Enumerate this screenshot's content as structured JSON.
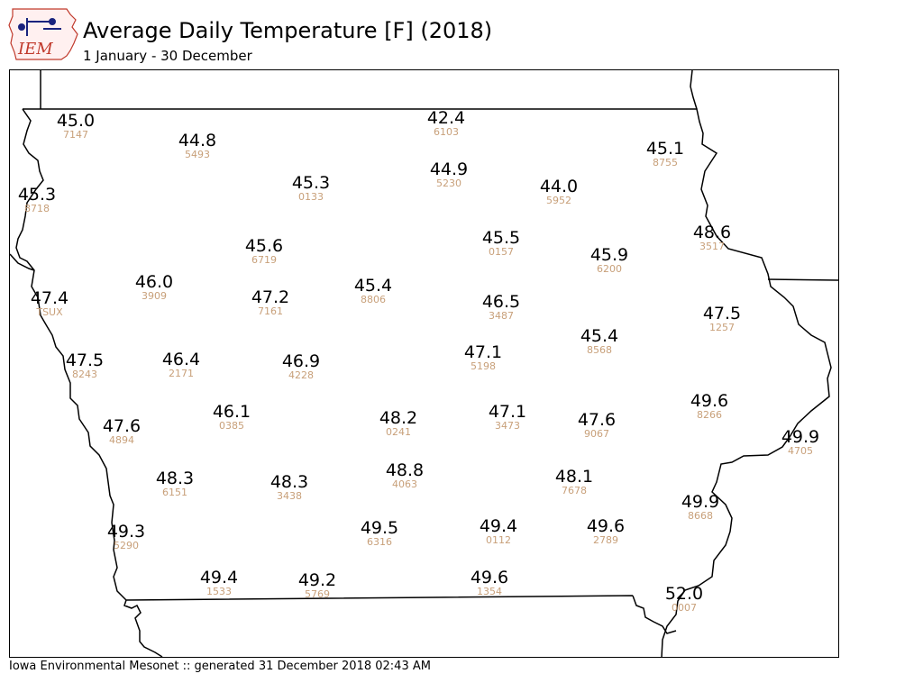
{
  "header": {
    "logo_text": "IEM",
    "title": "Average Daily Temperature [F] (2018)",
    "subtitle": "1 January - 30 December"
  },
  "footer": {
    "text": "Iowa Environmental Mesonet :: generated 31 December 2018 02:43 AM"
  },
  "colors": {
    "value_text": "#000000",
    "station_id_text": "#c8a07a",
    "logo_red": "#c0392b",
    "logo_blue": "#1a237e"
  },
  "stations": [
    {
      "id": "7147",
      "value": "45.0"
    },
    {
      "id": "6103",
      "value": "42.4"
    },
    {
      "id": "5493",
      "value": "44.8"
    },
    {
      "id": "8755",
      "value": "45.1"
    },
    {
      "id": "5230",
      "value": "44.9"
    },
    {
      "id": "0133",
      "value": "45.3"
    },
    {
      "id": "5952",
      "value": "44.0"
    },
    {
      "id": "8718",
      "value": "45.3"
    },
    {
      "id": "3517",
      "value": "48.6"
    },
    {
      "id": "0157",
      "value": "45.5"
    },
    {
      "id": "6719",
      "value": "45.6"
    },
    {
      "id": "6200",
      "value": "45.9"
    },
    {
      "id": "3909",
      "value": "46.0"
    },
    {
      "id": "8806",
      "value": "45.4"
    },
    {
      "id": "TSUX",
      "value": "47.4"
    },
    {
      "id": "7161",
      "value": "47.2"
    },
    {
      "id": "3487",
      "value": "46.5"
    },
    {
      "id": "1257",
      "value": "47.5"
    },
    {
      "id": "8568",
      "value": "45.4"
    },
    {
      "id": "5198",
      "value": "47.1"
    },
    {
      "id": "8243",
      "value": "47.5"
    },
    {
      "id": "2171",
      "value": "46.4"
    },
    {
      "id": "4228",
      "value": "46.9"
    },
    {
      "id": "8266",
      "value": "49.6"
    },
    {
      "id": "0385",
      "value": "46.1"
    },
    {
      "id": "3473",
      "value": "47.1"
    },
    {
      "id": "0241",
      "value": "48.2"
    },
    {
      "id": "9067",
      "value": "47.6"
    },
    {
      "id": "4894",
      "value": "47.6"
    },
    {
      "id": "4705",
      "value": "49.9"
    },
    {
      "id": "4063",
      "value": "48.8"
    },
    {
      "id": "6151",
      "value": "48.3"
    },
    {
      "id": "3438",
      "value": "48.3"
    },
    {
      "id": "7678",
      "value": "48.1"
    },
    {
      "id": "8668",
      "value": "49.9"
    },
    {
      "id": "5290",
      "value": "49.3"
    },
    {
      "id": "6316",
      "value": "49.5"
    },
    {
      "id": "0112",
      "value": "49.4"
    },
    {
      "id": "2789",
      "value": "49.6"
    },
    {
      "id": "1533",
      "value": "49.4"
    },
    {
      "id": "5769",
      "value": "49.2"
    },
    {
      "id": "1354",
      "value": "49.6"
    },
    {
      "id": "0007",
      "value": "52.0"
    }
  ]
}
